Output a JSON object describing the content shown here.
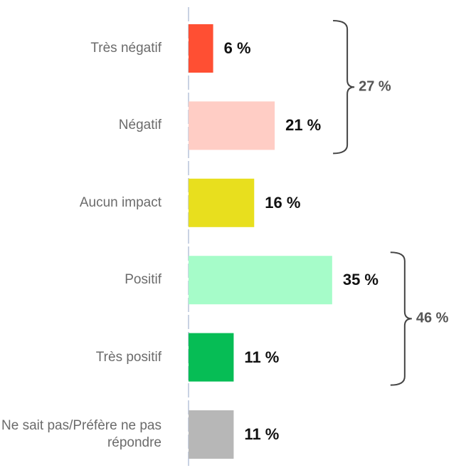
{
  "chart_data": {
    "type": "bar",
    "orientation": "horizontal",
    "categories": [
      "Très négatif",
      "Négatif",
      "Aucun impact",
      "Positif",
      "Très positif",
      "Ne sait pas/Préfère ne pas répondre"
    ],
    "values": [
      6,
      21,
      16,
      35,
      11,
      11
    ],
    "value_labels": [
      "6 %",
      "21 %",
      "16 %",
      "35 %",
      "11 %",
      "11 %"
    ],
    "colors": [
      "#ff4f33",
      "#ffcdc5",
      "#e8df1e",
      "#a6fcc9",
      "#06bd55",
      "#b7b7b7"
    ],
    "xlim": [
      0,
      60
    ],
    "groups": [
      {
        "members": [
          0,
          1
        ],
        "value": 27,
        "label": "27 %"
      },
      {
        "members": [
          3,
          4
        ],
        "value": 46,
        "label": "46 %"
      }
    ]
  }
}
